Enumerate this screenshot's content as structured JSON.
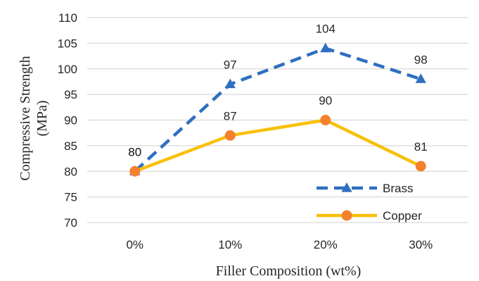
{
  "chart_data": {
    "type": "line",
    "title": "",
    "xlabel": "Filler Composition (wt%)",
    "ylabel_line1": "Compressive Strength",
    "ylabel_line2": "(MPa)",
    "categories": [
      "0%",
      "10%",
      "20%",
      "30%"
    ],
    "yticks": [
      70,
      75,
      80,
      85,
      90,
      95,
      100,
      105,
      110
    ],
    "ylim": [
      70,
      110
    ],
    "grid": "horizontal",
    "legend_position": "bottom-right",
    "series": [
      {
        "name": "Brass",
        "values": [
          80,
          97,
          104,
          98
        ],
        "color": "#2f6fc0",
        "marker": "triangle",
        "line_style": "dashed"
      },
      {
        "name": "Copper",
        "values": [
          80,
          87,
          90,
          81
        ],
        "color": "#f8c00a",
        "marker_color": "#f4812d",
        "marker": "circle",
        "line_style": "solid"
      }
    ]
  }
}
